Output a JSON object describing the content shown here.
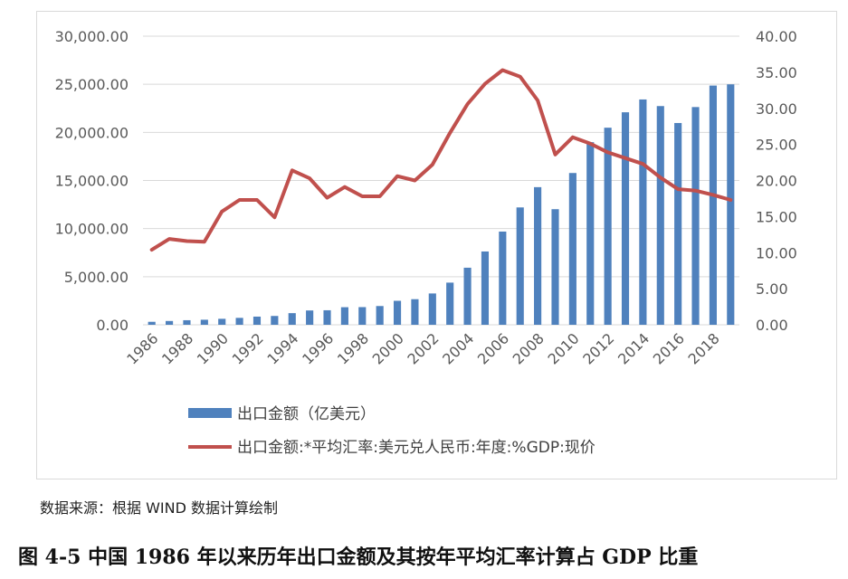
{
  "chart_data": {
    "type": "bar+line",
    "categories": [
      "1986",
      "1987",
      "1988",
      "1989",
      "1990",
      "1991",
      "1992",
      "1993",
      "1994",
      "1995",
      "1996",
      "1997",
      "1998",
      "1999",
      "2000",
      "2001",
      "2002",
      "2003",
      "2004",
      "2005",
      "2006",
      "2007",
      "2008",
      "2009",
      "2010",
      "2011",
      "2012",
      "2013",
      "2014",
      "2015",
      "2016",
      "2017",
      "2018",
      "2019"
    ],
    "x_tick_labels": [
      "1986",
      "1988",
      "1990",
      "1992",
      "1994",
      "1996",
      "1998",
      "2000",
      "2002",
      "2004",
      "2006",
      "2008",
      "2010",
      "2012",
      "2014",
      "2016",
      "2018"
    ],
    "series": [
      {
        "name": "出口金额（亿美元）",
        "type": "bar",
        "axis": "left",
        "color": "#4f81bd",
        "values": [
          309,
          394,
          475,
          525,
          621,
          719,
          849,
          917,
          1210,
          1488,
          1510,
          1828,
          1837,
          1949,
          2492,
          2661,
          3256,
          4382,
          5933,
          7620,
          9689,
          12200,
          14307,
          12016,
          15778,
          18984,
          20487,
          22090,
          23423,
          22735,
          20976,
          22633,
          24867,
          24995
        ]
      },
      {
        "name": "出口金额:*平均汇率:美元兑人民币:年度:%GDP:现价",
        "type": "line",
        "axis": "right",
        "color": "#c0504d",
        "values": [
          10.4,
          11.9,
          11.6,
          11.5,
          15.7,
          17.3,
          17.3,
          14.9,
          21.4,
          20.3,
          17.6,
          19.1,
          17.8,
          17.8,
          20.6,
          20.0,
          22.2,
          26.6,
          30.6,
          33.4,
          35.3,
          34.4,
          31.1,
          23.6,
          26.0,
          25.1,
          23.9,
          23.1,
          22.3,
          20.4,
          18.8,
          18.6,
          18.0,
          17.3
        ]
      }
    ],
    "y_left_ticks": [
      "0.00",
      "5,000.00",
      "10,000.00",
      "15,000.00",
      "20,000.00",
      "25,000.00",
      "30,000.00"
    ],
    "y_left_range": [
      0,
      30000
    ],
    "y_right_ticks": [
      "0.00",
      "5.00",
      "10.00",
      "15.00",
      "20.00",
      "25.00",
      "30.00",
      "35.00",
      "40.00"
    ],
    "y_right_range": [
      0,
      40
    ],
    "grid": true,
    "legend_position": "bottom-left"
  },
  "legend": {
    "bar_label": "出口金额（亿美元）",
    "line_label": "出口金额:*平均汇率:美元兑人民币:年度:%GDP:现价"
  },
  "source_note": "数据来源：根据 WIND 数据计算绘制",
  "figure_caption": "图 4-5 中国 1986 年以来历年出口金额及其按年平均汇率计算占 GDP 比重"
}
